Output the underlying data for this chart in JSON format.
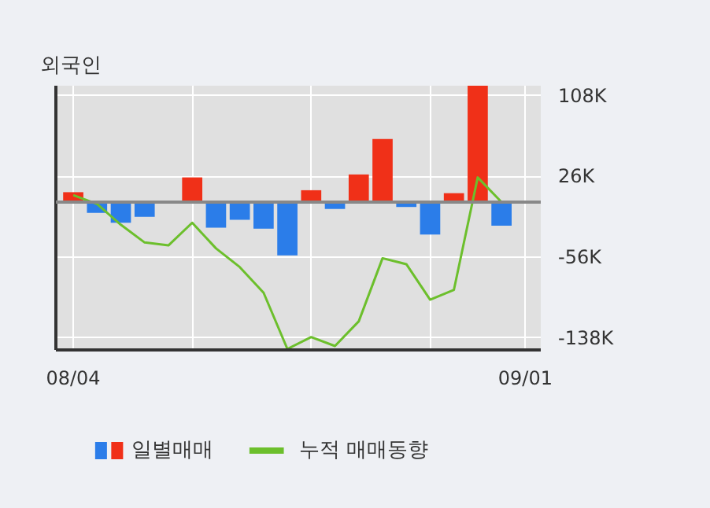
{
  "chart_data": {
    "type": "bar",
    "title": "외국인",
    "categories": [
      "08/04",
      null,
      null,
      null,
      null,
      null,
      null,
      null,
      null,
      null,
      null,
      null,
      null,
      null,
      null,
      null,
      null,
      null,
      null,
      "09/01"
    ],
    "series": [
      {
        "name": "일별매매",
        "colors": [
          "#f03018",
          "#2b7de9",
          "#2b7de9",
          "#2b7de9",
          "#2b7de9",
          "#f03018",
          "#2b7de9",
          "#2b7de9",
          "#2b7de9",
          "#2b7de9",
          "#f03018",
          "#2b7de9",
          "#f03018",
          "#f03018",
          "#2b7de9",
          "#2b7de9",
          "#f03018",
          "#f03018",
          "#2b7de9",
          "#2b7de9"
        ],
        "values": [
          10,
          -11,
          -21,
          -15,
          0,
          25,
          -26,
          -18,
          -27,
          -54,
          12,
          -7,
          28,
          64,
          -5,
          -33,
          9,
          118,
          -24,
          0
        ]
      },
      {
        "name": "누적 매매동향",
        "type": "line",
        "color": "#6cbf2c",
        "values": [
          7,
          -2,
          -23,
          -41,
          -44,
          -21,
          -47,
          -66,
          -92,
          -149,
          -137,
          -146,
          -121,
          -57,
          -63,
          -99,
          -89,
          25,
          0,
          0
        ]
      }
    ],
    "ylim": [
      -150,
      118
    ],
    "yticks": [
      {
        "value": 108,
        "label": "108K"
      },
      {
        "value": 26,
        "label": "26K"
      },
      {
        "value": -56,
        "label": "-56K"
      },
      {
        "value": -138,
        "label": "-138K"
      }
    ],
    "ref_lines": [
      {
        "axis": "y",
        "value": 0,
        "color": "#888888"
      }
    ],
    "grid": true,
    "legend": "bottom"
  }
}
